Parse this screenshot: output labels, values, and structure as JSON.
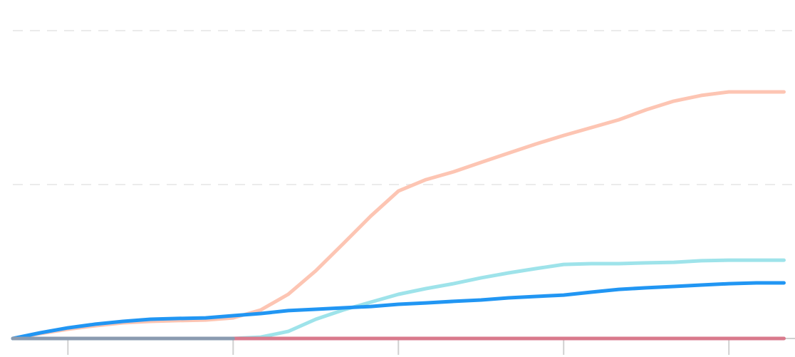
{
  "chart_data": {
    "type": "line",
    "x": [
      0,
      0.5,
      1,
      1.5,
      2,
      2.5,
      3,
      3.5,
      4,
      4.5,
      5,
      5.5,
      6,
      6.5,
      7,
      7.5,
      8,
      8.5,
      9,
      9.5,
      10,
      10.5,
      11,
      11.5,
      12,
      12.5,
      13,
      13.5,
      14
    ],
    "series": [
      {
        "color": "#fdc5b3",
        "values": [
          0,
          0.032,
          0.06,
          0.083,
          0.102,
          0.111,
          0.116,
          0.12,
          0.134,
          0.185,
          0.287,
          0.44,
          0.616,
          0.796,
          0.958,
          1.032,
          1.083,
          1.144,
          1.204,
          1.264,
          1.319,
          1.37,
          1.421,
          1.486,
          1.542,
          1.579,
          1.602,
          1.602,
          1.602
        ]
      },
      {
        "color": "#9ee3ea",
        "values": [
          0,
          0,
          0,
          0,
          0,
          0,
          0,
          0,
          0,
          0.009,
          0.046,
          0.125,
          0.185,
          0.236,
          0.287,
          0.324,
          0.356,
          0.394,
          0.426,
          0.454,
          0.481,
          0.486,
          0.486,
          0.491,
          0.495,
          0.505,
          0.509,
          0.509,
          0.509
        ]
      },
      {
        "color": "#2196f3",
        "values": [
          0,
          0.037,
          0.069,
          0.093,
          0.111,
          0.125,
          0.13,
          0.134,
          0.148,
          0.162,
          0.181,
          0.19,
          0.199,
          0.208,
          0.222,
          0.231,
          0.241,
          0.25,
          0.264,
          0.273,
          0.282,
          0.301,
          0.319,
          0.329,
          0.338,
          0.347,
          0.356,
          0.361,
          0.361
        ]
      },
      {
        "color": "#d97a8c",
        "values": [
          null,
          null,
          null,
          null,
          null,
          null,
          null,
          null,
          0,
          0,
          0,
          0,
          0,
          0,
          0,
          0,
          0,
          0,
          0,
          0,
          0,
          0,
          0,
          0,
          0,
          0,
          0,
          0,
          0
        ]
      },
      {
        "color": "#8a9bb0",
        "values": [
          0,
          0,
          0,
          0,
          0,
          0,
          0,
          0,
          0,
          null,
          null,
          null,
          null,
          null,
          null,
          null,
          null,
          null,
          null,
          null,
          null,
          null,
          null,
          null,
          null,
          null,
          null,
          null,
          null
        ]
      }
    ],
    "xlim": [
      0,
      14.2
    ],
    "xticks": [
      1,
      4,
      7,
      10,
      13
    ],
    "ylim": [
      0,
      2
    ],
    "yticks": [
      0,
      1,
      2
    ],
    "grid": true
  }
}
